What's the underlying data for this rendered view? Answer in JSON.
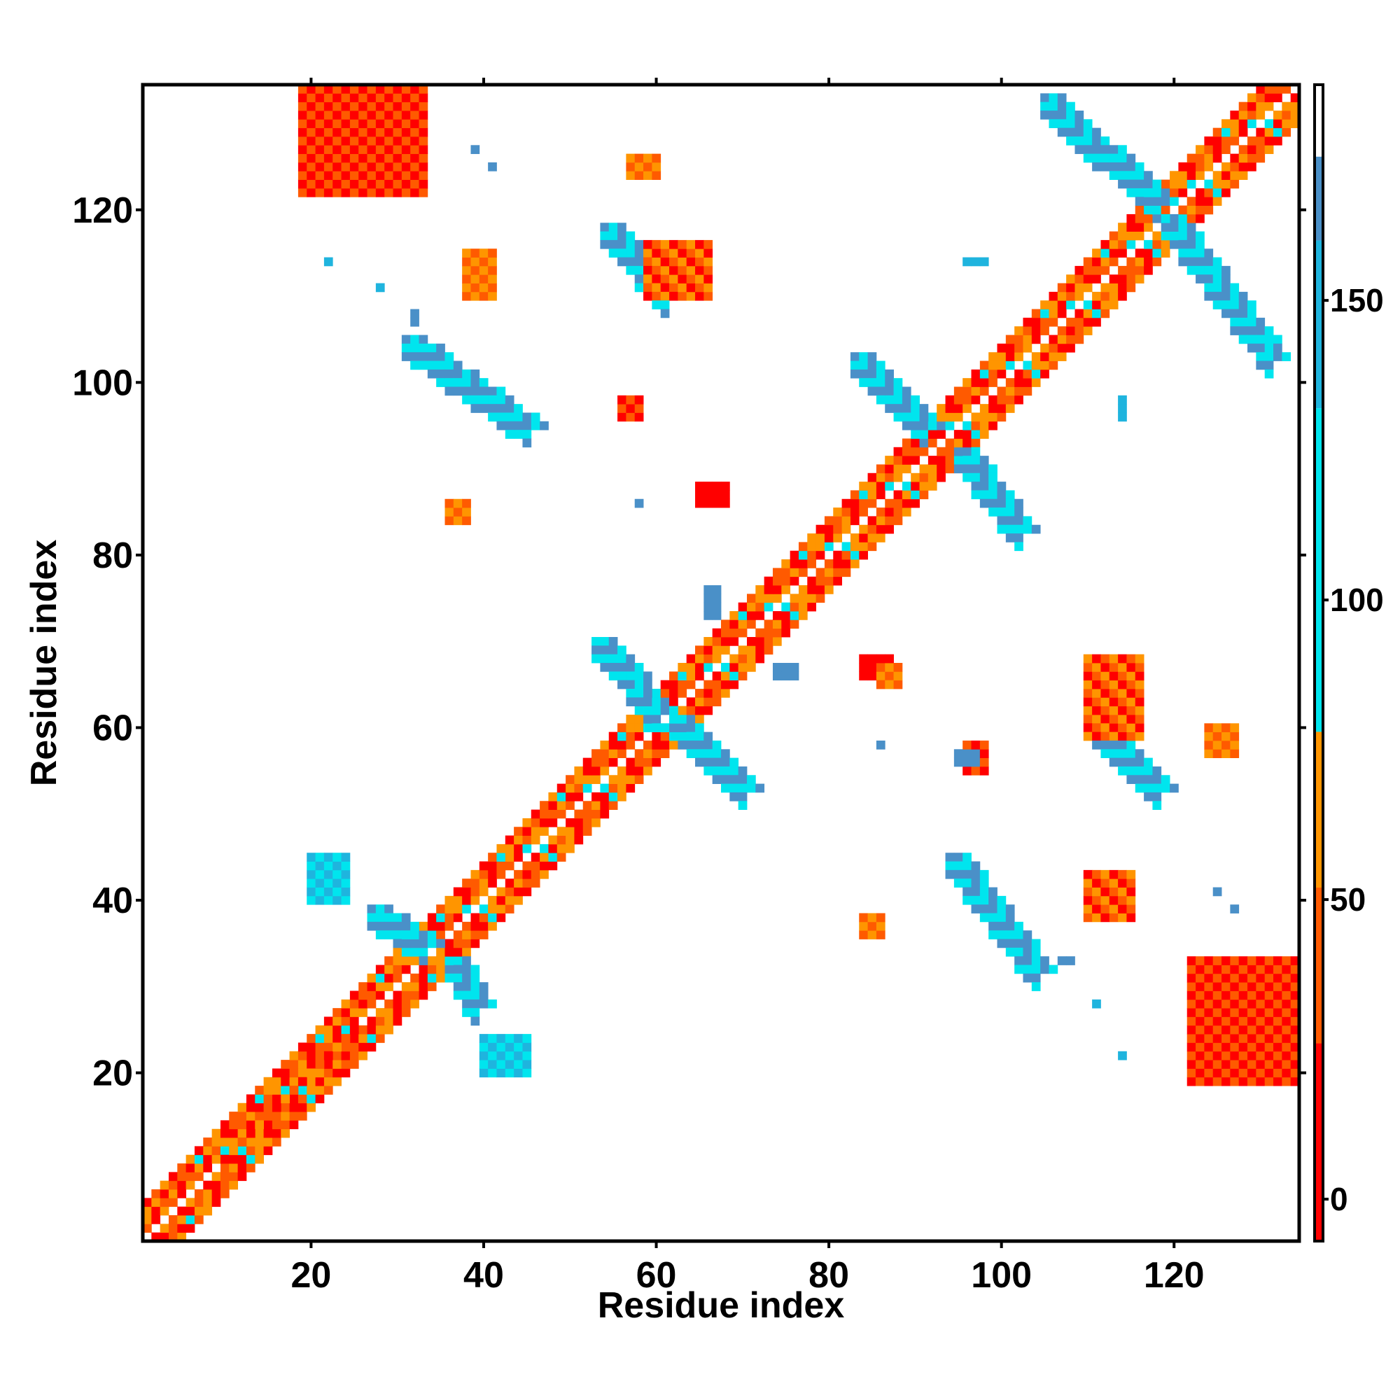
{
  "chart_data": {
    "type": "heatmap",
    "title": "",
    "xlabel": "Residue index",
    "ylabel": "Residue index",
    "xlim": [
      1,
      134
    ],
    "ylim": [
      1,
      134
    ],
    "x_ticks": [
      20,
      40,
      60,
      80,
      100,
      120
    ],
    "y_ticks": [
      20,
      40,
      60,
      80,
      100,
      120
    ],
    "colorbar": {
      "range": [
        -7,
        186
      ],
      "ticks": [
        0,
        50,
        100,
        150
      ],
      "bands": [
        {
          "from": -7,
          "to": 26,
          "color": "#ff0000"
        },
        {
          "from": 26,
          "to": 52,
          "color": "#ff5a00"
        },
        {
          "from": 52,
          "to": 78,
          "color": "#ff9500"
        },
        {
          "from": 78,
          "to": 132,
          "color": "#00e5ee"
        },
        {
          "from": 132,
          "to": 160,
          "color": "#1fb4de"
        },
        {
          "from": 160,
          "to": 174,
          "color": "#4a90c8"
        },
        {
          "from": 174,
          "to": 186,
          "color": "#ffffff"
        }
      ]
    },
    "grid": false,
    "legend": "colorbar-right",
    "diagonal_band": {
      "from": 1,
      "to": 134,
      "half_width": 4,
      "pattern": "alternating-red-orange-cyan"
    },
    "features": [
      {
        "kind": "diagonal-strip",
        "start": [
          2,
          1
        ],
        "end": [
          33,
          34
        ],
        "width": 5,
        "colors": [
          "#ff0000",
          "#ff5a00",
          "#ff9500"
        ]
      },
      {
        "kind": "diagonal-strip",
        "start": [
          1,
          2
        ],
        "end": [
          34,
          33
        ],
        "width": 5,
        "colors": [
          "#ff0000",
          "#ff5a00",
          "#ff9500"
        ]
      },
      {
        "kind": "block",
        "x": [
          19,
          33
        ],
        "y": [
          122,
          134
        ],
        "colors": [
          "#ff0000",
          "#ff5a00"
        ]
      },
      {
        "kind": "block",
        "x": [
          122,
          134
        ],
        "y": [
          19,
          33
        ],
        "colors": [
          "#ff0000",
          "#ff5a00"
        ]
      },
      {
        "kind": "anti-strip",
        "from": [
          31,
          105
        ],
        "to": [
          45,
          95
        ],
        "colors": [
          "#00e5ee",
          "#4a90c8"
        ]
      },
      {
        "kind": "anti-strip",
        "from": [
          54,
          118
        ],
        "to": [
          61,
          110
        ],
        "colors": [
          "#00e5ee",
          "#4a90c8"
        ]
      },
      {
        "kind": "anti-strip",
        "from": [
          105,
          133
        ],
        "to": [
          118,
          121
        ],
        "colors": [
          "#00e5ee",
          "#4a90c8"
        ]
      },
      {
        "kind": "anti-strip",
        "from": [
          119,
          119
        ],
        "to": [
          131,
          103
        ],
        "colors": [
          "#00e5ee",
          "#4a90c8"
        ]
      },
      {
        "kind": "anti-strip",
        "from": [
          83,
          103
        ],
        "to": [
          91,
          95
        ],
        "colors": [
          "#00e5ee",
          "#4a90c8"
        ]
      },
      {
        "kind": "anti-strip",
        "from": [
          95,
          92
        ],
        "to": [
          102,
          83
        ],
        "colors": [
          "#00e5ee",
          "#4a90c8"
        ]
      },
      {
        "kind": "anti-strip",
        "from": [
          53,
          70
        ],
        "to": [
          60,
          62
        ],
        "colors": [
          "#00e5ee",
          "#4a90c8"
        ]
      },
      {
        "kind": "anti-strip",
        "from": [
          62,
          61
        ],
        "to": [
          70,
          53
        ],
        "colors": [
          "#00e5ee",
          "#4a90c8"
        ]
      },
      {
        "kind": "anti-strip",
        "from": [
          94,
          45
        ],
        "to": [
          104,
          32
        ],
        "colors": [
          "#00e5ee",
          "#4a90c8"
        ]
      },
      {
        "kind": "anti-strip",
        "from": [
          110,
          61
        ],
        "to": [
          118,
          53
        ],
        "colors": [
          "#00e5ee",
          "#4a90c8"
        ]
      },
      {
        "kind": "anti-strip",
        "from": [
          27,
          39
        ],
        "to": [
          33,
          35
        ],
        "colors": [
          "#00e5ee",
          "#4a90c8"
        ]
      },
      {
        "kind": "anti-strip",
        "from": [
          36,
          33
        ],
        "to": [
          39,
          28
        ],
        "colors": [
          "#00e5ee",
          "#4a90c8"
        ]
      },
      {
        "kind": "block",
        "x": [
          20,
          24
        ],
        "y": [
          40,
          45
        ],
        "colors": [
          "#00e5ee",
          "#1fb4de"
        ]
      },
      {
        "kind": "block",
        "x": [
          40,
          45
        ],
        "y": [
          20,
          24
        ],
        "colors": [
          "#00e5ee",
          "#1fb4de"
        ]
      },
      {
        "kind": "small",
        "x": [
          38,
          41
        ],
        "y": [
          110,
          115
        ],
        "colors": [
          "#ff5a00",
          "#ff9500"
        ]
      },
      {
        "kind": "small",
        "x": [
          59,
          66
        ],
        "y": [
          110,
          116
        ],
        "colors": [
          "#ff5a00",
          "#ff9500",
          "#ff0000"
        ]
      },
      {
        "kind": "small",
        "x": [
          57,
          60
        ],
        "y": [
          124,
          126
        ],
        "colors": [
          "#ff5a00",
          "#ff9500"
        ]
      },
      {
        "kind": "small",
        "x": [
          56,
          58
        ],
        "y": [
          96,
          98
        ],
        "colors": [
          "#ff5a00",
          "#ff0000"
        ]
      },
      {
        "kind": "small",
        "x": [
          36,
          38
        ],
        "y": [
          84,
          86
        ],
        "colors": [
          "#ff5a00",
          "#ff9500"
        ]
      },
      {
        "kind": "small",
        "x": [
          65,
          68
        ],
        "y": [
          86,
          88
        ],
        "colors": [
          "#ff0000"
        ]
      },
      {
        "kind": "small",
        "x": [
          84,
          87
        ],
        "y": [
          66,
          68
        ],
        "colors": [
          "#ff0000"
        ]
      },
      {
        "kind": "small",
        "x": [
          86,
          88
        ],
        "y": [
          65,
          67
        ],
        "colors": [
          "#ff5a00",
          "#ff9500"
        ]
      },
      {
        "kind": "small",
        "x": [
          96,
          98
        ],
        "y": [
          55,
          58
        ],
        "colors": [
          "#ff5a00",
          "#ff0000"
        ]
      },
      {
        "kind": "small",
        "x": [
          110,
          116
        ],
        "y": [
          59,
          68
        ],
        "colors": [
          "#ff5a00",
          "#ff9500",
          "#ff0000"
        ]
      },
      {
        "kind": "small",
        "x": [
          124,
          127
        ],
        "y": [
          57,
          60
        ],
        "colors": [
          "#ff5a00",
          "#ff9500"
        ]
      },
      {
        "kind": "small",
        "x": [
          110,
          115
        ],
        "y": [
          38,
          43
        ],
        "colors": [
          "#ff5a00",
          "#ff9500",
          "#ff0000"
        ]
      },
      {
        "kind": "small",
        "x": [
          84,
          86
        ],
        "y": [
          36,
          38
        ],
        "colors": [
          "#ff5a00",
          "#ff9500"
        ]
      },
      {
        "kind": "small",
        "x": [
          95,
          97
        ],
        "y": [
          56,
          57
        ],
        "colors": [
          "#4a90c8"
        ]
      },
      {
        "kind": "small",
        "x": [
          66,
          67
        ],
        "y": [
          73,
          76
        ],
        "colors": [
          "#4a90c8"
        ]
      },
      {
        "kind": "small",
        "x": [
          74,
          76
        ],
        "y": [
          66,
          67
        ],
        "colors": [
          "#4a90c8"
        ]
      },
      {
        "kind": "small",
        "x": [
          114,
          114
        ],
        "y": [
          96,
          98
        ],
        "colors": [
          "#1fb4de"
        ]
      },
      {
        "kind": "small",
        "x": [
          96,
          98
        ],
        "y": [
          114,
          114
        ],
        "colors": [
          "#1fb4de"
        ]
      },
      {
        "kind": "small",
        "x": [
          22,
          22
        ],
        "y": [
          114,
          114
        ],
        "colors": [
          "#1fb4de"
        ]
      },
      {
        "kind": "small",
        "x": [
          28,
          28
        ],
        "y": [
          111,
          111
        ],
        "colors": [
          "#1fb4de"
        ]
      },
      {
        "kind": "small",
        "x": [
          32,
          32
        ],
        "y": [
          107,
          108
        ],
        "colors": [
          "#4a90c8"
        ]
      },
      {
        "kind": "small",
        "x": [
          39,
          39
        ],
        "y": [
          127,
          127
        ],
        "colors": [
          "#4a90c8"
        ]
      },
      {
        "kind": "small",
        "x": [
          41,
          41
        ],
        "y": [
          125,
          125
        ],
        "colors": [
          "#4a90c8"
        ]
      },
      {
        "kind": "small",
        "x": [
          58,
          58
        ],
        "y": [
          86,
          86
        ],
        "colors": [
          "#4a90c8"
        ]
      },
      {
        "kind": "small",
        "x": [
          86,
          86
        ],
        "y": [
          58,
          58
        ],
        "colors": [
          "#4a90c8"
        ]
      },
      {
        "kind": "small",
        "x": [
          107,
          108
        ],
        "y": [
          33,
          33
        ],
        "colors": [
          "#4a90c8"
        ]
      },
      {
        "kind": "small",
        "x": [
          111,
          111
        ],
        "y": [
          28,
          28
        ],
        "colors": [
          "#1fb4de"
        ]
      },
      {
        "kind": "small",
        "x": [
          114,
          114
        ],
        "y": [
          22,
          22
        ],
        "colors": [
          "#1fb4de"
        ]
      },
      {
        "kind": "small",
        "x": [
          125,
          125
        ],
        "y": [
          41,
          41
        ],
        "colors": [
          "#4a90c8"
        ]
      },
      {
        "kind": "small",
        "x": [
          127,
          127
        ],
        "y": [
          39,
          39
        ],
        "colors": [
          "#4a90c8"
        ]
      },
      {
        "kind": "small",
        "x": [
          131,
          132
        ],
        "y": [
          105,
          105
        ],
        "colors": [
          "#00e5ee"
        ]
      }
    ]
  }
}
